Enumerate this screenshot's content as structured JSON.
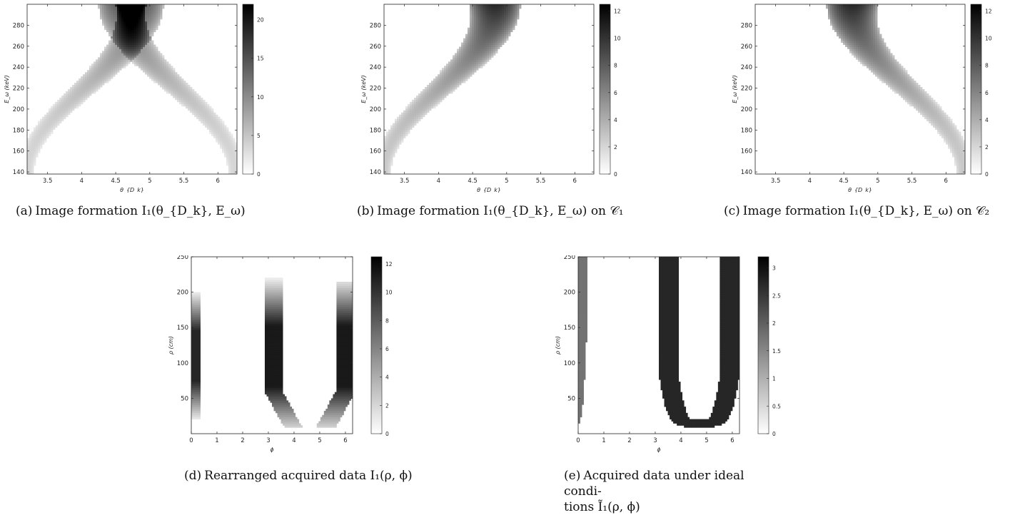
{
  "chart_data": [
    {
      "type": "heatmap",
      "id": "a",
      "xlabel": "θ_{D_k}",
      "ylabel": "E_ω (keV)",
      "xlim": [
        3.2,
        6.28
      ],
      "ylim": [
        138,
        300
      ],
      "xticks": [
        "3.5",
        "4",
        "4.5",
        "5",
        "5.5",
        "6"
      ],
      "yticks": [
        "140",
        "160",
        "180",
        "200",
        "220",
        "240",
        "260",
        "280"
      ],
      "colorbar": {
        "min": 0,
        "max": 22,
        "ticks": [
          "0",
          "5",
          "10",
          "15",
          "20"
        ]
      },
      "colormap": "white-to-black",
      "bands": [
        {
          "x_start": 3.25,
          "x_end": 5.15,
          "direction": "rising",
          "width": 0.7,
          "peak_intensity": 0.65
        },
        {
          "x_start": 4.3,
          "x_end": 6.2,
          "direction": "falling",
          "width": 0.7,
          "peak_intensity": 0.65
        }
      ],
      "caption_prefix": "(a)",
      "caption": "Image formation I₁(θ_{D_k}, E_ω)"
    },
    {
      "type": "heatmap",
      "id": "b",
      "xlabel": "θ_{D_k}",
      "ylabel": "E_ω (keV)",
      "xlim": [
        3.2,
        6.28
      ],
      "ylim": [
        138,
        300
      ],
      "xticks": [
        "3.5",
        "4",
        "4.5",
        "5",
        "5.5",
        "6"
      ],
      "yticks": [
        "140",
        "160",
        "180",
        "200",
        "220",
        "240",
        "260",
        "280"
      ],
      "colorbar": {
        "min": 0,
        "max": 12.5,
        "ticks": [
          "0",
          "2",
          "4",
          "6",
          "8",
          "10",
          "12"
        ]
      },
      "colormap": "white-to-black",
      "bands": [
        {
          "x_start": 3.25,
          "x_end": 5.15,
          "direction": "rising",
          "width": 0.75,
          "peak_intensity": 0.85
        }
      ],
      "caption_prefix": "(b)",
      "caption": "Image formation I₁(θ_{D_k}, E_ω) on 𝒞₁"
    },
    {
      "type": "heatmap",
      "id": "c",
      "xlabel": "θ_{D_k}",
      "ylabel": "E_ω (keV)",
      "xlim": [
        3.2,
        6.28
      ],
      "ylim": [
        138,
        300
      ],
      "xticks": [
        "3.5",
        "4",
        "4.5",
        "5",
        "5.5",
        "6"
      ],
      "yticks": [
        "140",
        "160",
        "180",
        "200",
        "220",
        "240",
        "260",
        "280"
      ],
      "colorbar": {
        "min": 0,
        "max": 12.5,
        "ticks": [
          "0",
          "2",
          "4",
          "6",
          "8",
          "10",
          "12"
        ]
      },
      "colormap": "white-to-black",
      "bands": [
        {
          "x_start": 4.3,
          "x_end": 6.2,
          "direction": "falling",
          "width": 0.75,
          "peak_intensity": 0.85
        }
      ],
      "caption_prefix": "(c)",
      "caption": "Image formation I₁(θ_{D_k}, E_ω) on 𝒞₂"
    },
    {
      "type": "heatmap",
      "id": "d",
      "xlabel": "ϕ",
      "ylabel": "ρ (cm)",
      "xlim": [
        0,
        6.28
      ],
      "ylim": [
        0,
        250
      ],
      "xticks": [
        "0",
        "1",
        "2",
        "3",
        "4",
        "5",
        "6"
      ],
      "yticks": [
        "50",
        "100",
        "150",
        "200",
        "250"
      ],
      "colorbar": {
        "min": 0,
        "max": 12.5,
        "ticks": [
          "0",
          "2",
          "4",
          "6",
          "8",
          "10",
          "12"
        ]
      },
      "colormap": "white-to-black",
      "shape": "partial-U",
      "caption_prefix": "(d)",
      "caption": "Rearranged acquired data I₁(ρ, ϕ)"
    },
    {
      "type": "heatmap",
      "id": "e",
      "xlabel": "ϕ",
      "ylabel": "ρ (cm)",
      "xlim": [
        0,
        6.28
      ],
      "ylim": [
        0,
        250
      ],
      "xticks": [
        "0",
        "1",
        "2",
        "3",
        "4",
        "5",
        "6"
      ],
      "yticks": [
        "50",
        "100",
        "150",
        "200",
        "250"
      ],
      "colorbar": {
        "min": 0,
        "max": 3.2,
        "ticks": [
          "0",
          "0.5",
          "1",
          "1.5",
          "2",
          "2.5",
          "3"
        ]
      },
      "colormap": "white-to-black",
      "shape": "full-U",
      "caption_prefix": "(e)",
      "caption_line1": "Acquired data under ideal condi-",
      "caption_line2": "tions Ĩ₁(ρ, ϕ)"
    }
  ]
}
